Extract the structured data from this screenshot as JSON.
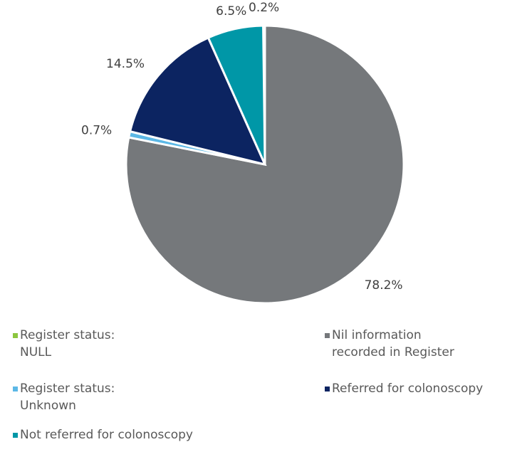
{
  "chart_data": {
    "type": "pie",
    "categories": [
      "Register status: NULL",
      "Nil information recorded in Register",
      "Register status: Unknown",
      "Referred for colonoscopy",
      "Not referred for colonoscopy"
    ],
    "values": [
      0.2,
      78.2,
      0.7,
      14.5,
      6.5
    ],
    "value_labels": [
      "0.2%",
      "78.2%",
      "0.7%",
      "14.5%",
      "6.5%"
    ],
    "colors": [
      "#8cc63f",
      "#75787b",
      "#5cb8e6",
      "#0c2461",
      "#0097a7"
    ],
    "legend": "bottom"
  }
}
